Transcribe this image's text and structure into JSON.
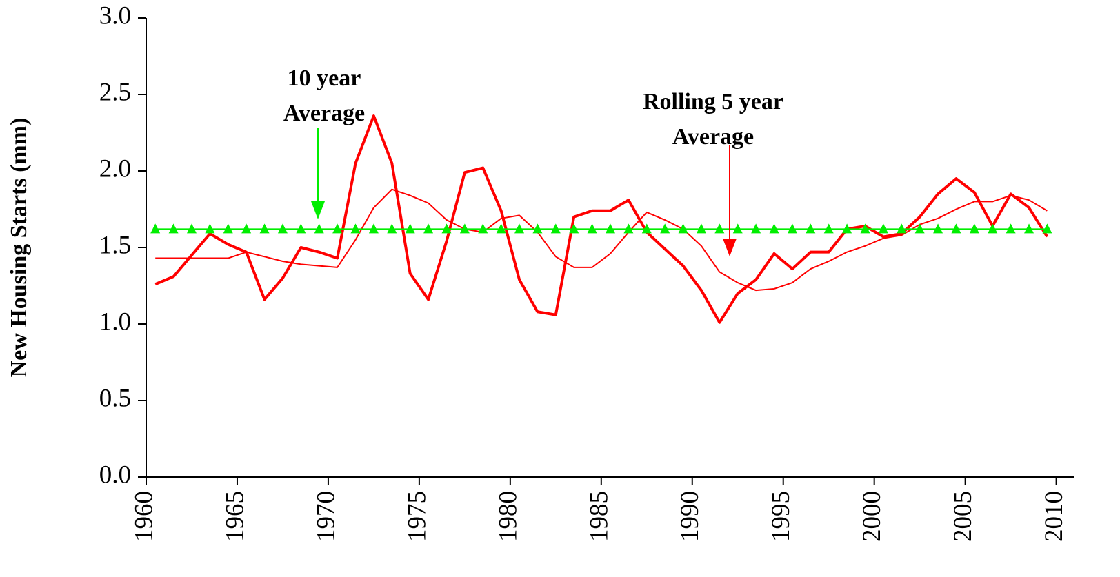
{
  "chart_data": {
    "type": "line",
    "y_label": "New Housing Starts (mm)",
    "xlim": [
      1960,
      2011
    ],
    "xticks": [
      1960,
      1965,
      1970,
      1975,
      1980,
      1985,
      1990,
      1995,
      2000,
      2005,
      2010
    ],
    "ylim": [
      0,
      3
    ],
    "yticks": [
      {
        "value": 0,
        "label": "0.0"
      },
      0.5,
      {
        "value": 1,
        "label": "1.0"
      },
      1.5,
      {
        "value": 2,
        "label": "2.0"
      },
      2.5,
      {
        "value": 3,
        "label": "3.0"
      }
    ],
    "x": [
      1960.5,
      1961.5,
      1962.5,
      1963.5,
      1964.5,
      1965.5,
      1966.5,
      1967.5,
      1968.5,
      1969.5,
      1970.5,
      1971.5,
      1972.5,
      1973.5,
      1974.5,
      1975.5,
      1976.5,
      1977.5,
      1978.5,
      1979.5,
      1980.5,
      1981.5,
      1982.5,
      1983.5,
      1984.5,
      1985.5,
      1986.5,
      1987.5,
      1988.5,
      1989.5,
      1990.5,
      1991.5,
      1992.5,
      1993.5,
      1994.5,
      1995.5,
      1996.5,
      1997.5,
      1998.5,
      1999.5,
      2000.5,
      2001.5,
      2002.5,
      2003.5,
      2004.5,
      2005.5,
      2006.5,
      2007.5,
      2008.5,
      2009.5
    ],
    "series": [
      {
        "color": "#ff0000",
        "width": 4,
        "values": [
          1.26,
          1.31,
          1.45,
          1.59,
          1.52,
          1.47,
          1.16,
          1.3,
          1.5,
          1.47,
          1.43,
          2.05,
          2.36,
          2.05,
          1.33,
          1.16,
          1.54,
          1.99,
          2.02,
          1.74,
          1.29,
          1.08,
          1.06,
          1.7,
          1.74,
          1.74,
          1.81,
          1.6,
          1.49,
          1.38,
          1.22,
          1.01,
          1.2,
          1.29,
          1.46,
          1.36,
          1.47,
          1.47,
          1.62,
          1.64,
          1.57,
          1.59,
          1.7,
          1.85,
          1.95,
          1.86,
          1.64,
          1.85,
          1.76,
          1.57
        ]
      },
      {
        "color": "#ff0000",
        "width": 2,
        "values": [
          1.43,
          1.43,
          1.43,
          1.43,
          1.43,
          1.47,
          1.44,
          1.41,
          1.39,
          1.38,
          1.37,
          1.55,
          1.76,
          1.88,
          1.84,
          1.79,
          1.68,
          1.62,
          1.6,
          1.69,
          1.71,
          1.6,
          1.44,
          1.37,
          1.37,
          1.46,
          1.6,
          1.73,
          1.68,
          1.62,
          1.51,
          1.34,
          1.27,
          1.22,
          1.23,
          1.27,
          1.36,
          1.41,
          1.47,
          1.51,
          1.56,
          1.58,
          1.65,
          1.69,
          1.75,
          1.8,
          1.8,
          1.84,
          1.81,
          1.74
        ]
      },
      {
        "color": "#00ee00",
        "width": 2,
        "marker": "triangle",
        "values": [
          1.62,
          1.62,
          1.62,
          1.62,
          1.62,
          1.62,
          1.62,
          1.62,
          1.62,
          1.62,
          1.62,
          1.62,
          1.62,
          1.62,
          1.62,
          1.62,
          1.62,
          1.62,
          1.62,
          1.62,
          1.62,
          1.62,
          1.62,
          1.62,
          1.62,
          1.62,
          1.62,
          1.62,
          1.62,
          1.62,
          1.62,
          1.62,
          1.62,
          1.62,
          1.62,
          1.62,
          1.62,
          1.62,
          1.62,
          1.62,
          1.62,
          1.62,
          1.62,
          1.62,
          1.62,
          1.62,
          1.62,
          1.62,
          1.62,
          1.62
        ]
      }
    ],
    "annotations": [
      {
        "lines": [
          "10 year",
          "Average"
        ],
        "color": "#00ee00"
      },
      {
        "lines": [
          "Rolling 5 year",
          "Average"
        ],
        "color": "#ff0000"
      }
    ]
  }
}
